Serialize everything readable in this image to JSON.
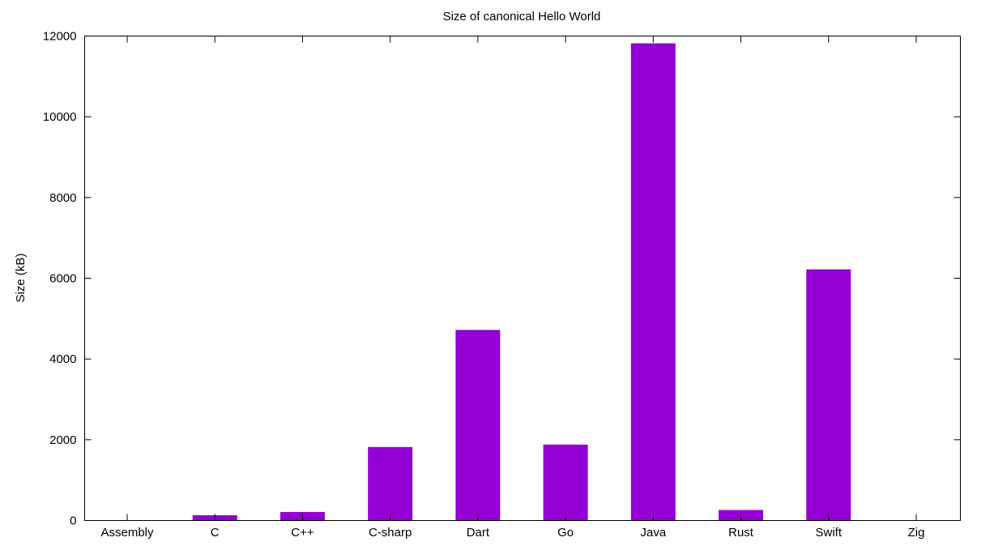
{
  "chart_data": {
    "type": "bar",
    "title": "Size of canonical Hello World",
    "xlabel": "",
    "ylabel": "Size (kB)",
    "categories": [
      "Assembly",
      "C",
      "C++",
      "C-sharp",
      "Dart",
      "Go",
      "Java",
      "Rust",
      "Swift",
      "Zig"
    ],
    "values": [
      9,
      130,
      210,
      1820,
      4720,
      1880,
      11820,
      260,
      6220,
      8
    ],
    "ylim": [
      0,
      12000
    ],
    "yticks": [
      0,
      2000,
      4000,
      6000,
      8000,
      10000,
      12000
    ],
    "grid": false,
    "legend": "none",
    "bar_color": "#9400D3"
  }
}
